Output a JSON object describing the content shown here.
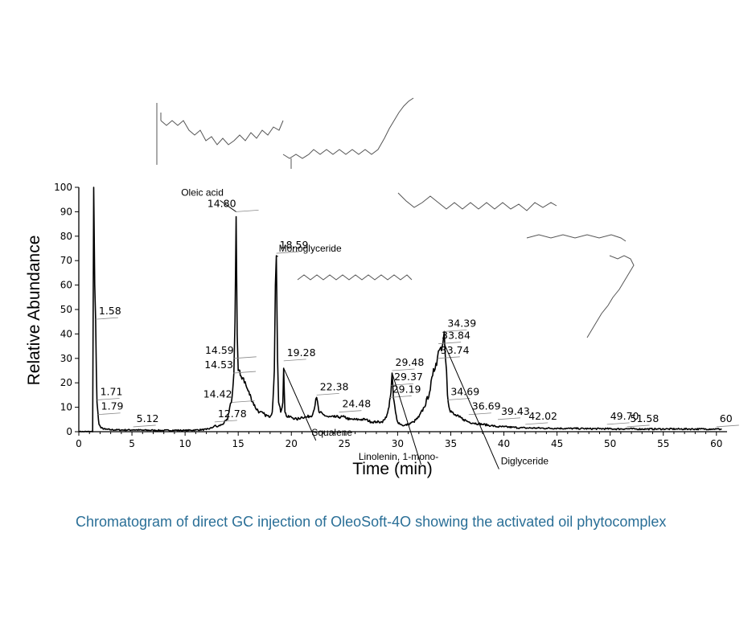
{
  "caption": "Chromatogram of direct GC injection of OleoSoft-4O showing the activated oil phytocomplex",
  "colors": {
    "trace": "#000000",
    "caption": "#2a6f97",
    "leader": "#888888"
  },
  "chart_data": {
    "type": "line",
    "xlabel": "Time (min)",
    "ylabel": "Relative Abundance",
    "xlim": [
      0,
      61
    ],
    "ylim": [
      0,
      100
    ],
    "x_ticks": [
      0,
      5,
      10,
      15,
      20,
      25,
      30,
      35,
      40,
      45,
      50,
      55,
      60
    ],
    "y_ticks": [
      0,
      10,
      20,
      30,
      40,
      50,
      60,
      70,
      80,
      90,
      100
    ],
    "grid": false,
    "series": [
      {
        "x": [
          0,
          1.3,
          1.4,
          1.5,
          1.58,
          1.65,
          1.71,
          1.79,
          1.9,
          2.1,
          2.5,
          3,
          4,
          5,
          5.12,
          6,
          7,
          8,
          9,
          10,
          11,
          12,
          12.5,
          12.78,
          13,
          13.5,
          14,
          14.2,
          14.42,
          14.53,
          14.59,
          14.7,
          14.8,
          14.9,
          15.0,
          15.2,
          15.5,
          15.8,
          16.2,
          16.6,
          17.0,
          17.5,
          17.9,
          18.2,
          18.4,
          18.5,
          18.59,
          18.7,
          18.8,
          19.0,
          19.2,
          19.28,
          19.4,
          19.6,
          20,
          20.5,
          21,
          21.5,
          22,
          22.38,
          22.6,
          23,
          23.5,
          24,
          24.48,
          25,
          25.5,
          26,
          26.5,
          27,
          27.5,
          28,
          28.5,
          28.8,
          29.0,
          29.19,
          29.37,
          29.48,
          29.6,
          29.8,
          30.0,
          30.3,
          30.6,
          31,
          31.5,
          32,
          32.5,
          33,
          33.3,
          33.6,
          33.74,
          33.84,
          34.0,
          34.2,
          34.39,
          34.5,
          34.6,
          34.69,
          34.9,
          35.3,
          35.8,
          36.2,
          36.69,
          37.2,
          38,
          38.8,
          39.43,
          40,
          40.8,
          41.5,
          42.02,
          43,
          44,
          45,
          46,
          47,
          48,
          49,
          49.7,
          50.5,
          51.58,
          52.5,
          53.5,
          54.5,
          55.5,
          56.5,
          57.5,
          58.5,
          59.5,
          60,
          60.5
        ],
        "y": [
          0,
          0,
          100,
          60,
          46,
          25,
          12,
          8,
          3,
          1.5,
          1,
          0.8,
          0.7,
          0.7,
          0.8,
          0.6,
          0.6,
          0.5,
          0.6,
          0.5,
          0.7,
          0.9,
          1.5,
          2.5,
          2,
          3,
          5,
          10,
          14,
          20,
          24,
          45,
          88,
          40,
          25,
          23,
          22,
          18,
          14,
          10,
          8,
          7,
          6,
          8,
          25,
          60,
          72,
          30,
          12,
          8,
          12,
          26,
          8,
          6,
          6,
          5,
          6,
          6,
          7,
          14,
          8,
          7,
          6,
          6,
          6,
          6,
          5,
          5,
          5,
          5,
          4,
          4,
          4,
          5,
          7,
          10,
          16,
          24,
          14,
          8,
          4,
          3,
          2.5,
          3,
          4,
          6,
          10,
          16,
          23,
          28,
          30,
          33,
          34,
          35,
          41,
          30,
          25,
          15,
          9,
          7,
          6,
          5,
          4,
          3.5,
          3,
          2.5,
          2,
          2,
          1.8,
          1.6,
          1.5,
          1.5,
          1.4,
          1.4,
          1.3,
          1.3,
          1.2,
          1.2,
          1.2,
          1.1,
          1.2,
          1.1,
          1.1,
          1.1,
          1.1,
          1.1,
          1.1,
          1.1,
          1.1,
          1.1,
          1
        ]
      }
    ],
    "peak_labels": [
      {
        "x": 1.58,
        "y": 46,
        "label": "1.58"
      },
      {
        "x": 1.71,
        "y": 13,
        "label": "1.71"
      },
      {
        "x": 1.79,
        "y": 7,
        "label": "1.79"
      },
      {
        "x": 5.12,
        "y": 2,
        "label": "5.12"
      },
      {
        "x": 12.78,
        "y": 4,
        "label": "12.78"
      },
      {
        "x": 14.42,
        "y": 12,
        "label": "14.42"
      },
      {
        "x": 14.53,
        "y": 24,
        "label": "14.53"
      },
      {
        "x": 14.59,
        "y": 30,
        "label": "14.59"
      },
      {
        "x": 14.8,
        "y": 90,
        "label": "14.80"
      },
      {
        "x": 18.59,
        "y": 73,
        "label": "18.59"
      },
      {
        "x": 19.28,
        "y": 29,
        "label": "19.28"
      },
      {
        "x": 22.38,
        "y": 15,
        "label": "22.38"
      },
      {
        "x": 24.48,
        "y": 8,
        "label": "24.48"
      },
      {
        "x": 29.19,
        "y": 14,
        "label": "29.19"
      },
      {
        "x": 29.37,
        "y": 19,
        "label": "29.37"
      },
      {
        "x": 29.48,
        "y": 25,
        "label": "29.48"
      },
      {
        "x": 33.74,
        "y": 30,
        "label": "33.74"
      },
      {
        "x": 33.84,
        "y": 36,
        "label": "33.84"
      },
      {
        "x": 34.39,
        "y": 41,
        "label": "34.39"
      },
      {
        "x": 34.69,
        "y": 13,
        "label": "34.69"
      },
      {
        "x": 36.69,
        "y": 7,
        "label": "36.69"
      },
      {
        "x": 39.43,
        "y": 5,
        "label": "39.43"
      },
      {
        "x": 42.02,
        "y": 3,
        "label": "42.02"
      },
      {
        "x": 49.7,
        "y": 3,
        "label": "49.70"
      },
      {
        "x": 51.58,
        "y": 2,
        "label": "51.58"
      },
      {
        "x": 60,
        "y": 2,
        "label": "60"
      }
    ],
    "annotations": [
      {
        "label": "Oleic acid",
        "x": 14.8,
        "y": 90
      },
      {
        "label": "Monoglyceride",
        "x": 18.59,
        "y": 72
      },
      {
        "label": "Squalene",
        "x": 19.28,
        "y": 26
      },
      {
        "label": "Linolenin, 1-mono-",
        "x": 29.48,
        "y": 24
      },
      {
        "label": "Diglyceride",
        "x": 34.39,
        "y": 36
      }
    ]
  }
}
